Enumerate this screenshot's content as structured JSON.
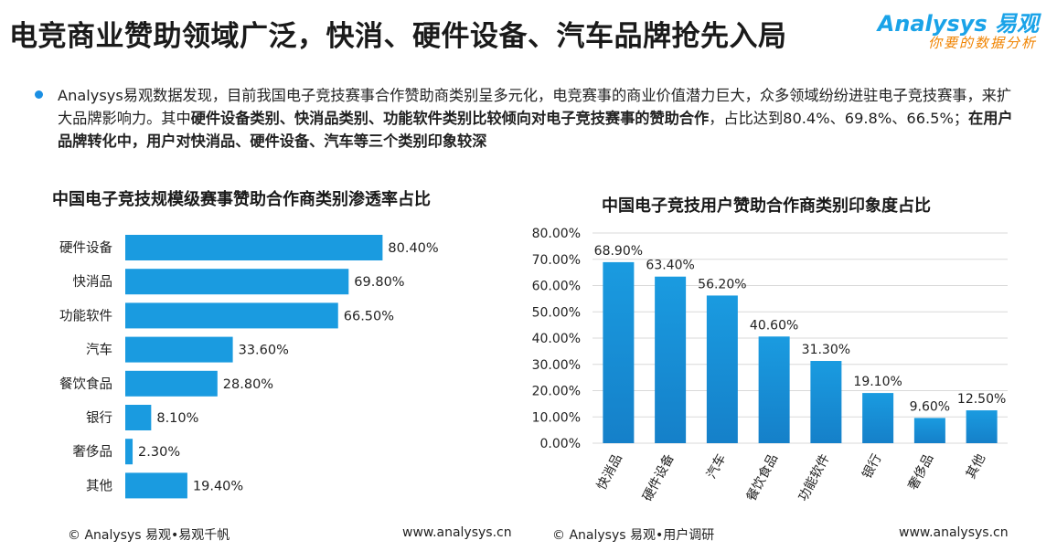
{
  "header": {
    "title": "电竞商业赞助领域广泛，快消、硬件设备、汽车品牌抢先入局",
    "logo_brand": "Analysys 易观",
    "logo_tagline": "你要的数据分析"
  },
  "summary": {
    "part1": "Analysys易观数据发现，目前我国电子竞技赛事合作赞助商类别呈多元化，电竞赛事的商业价值潜力巨大，众多领域纷纷进驻电子竞技赛事，来扩大品牌影响力。其中",
    "bold1": "硬件设备类别、快消品类别、功能软件类别比较倾向对电子竞技赛事的赞助合作",
    "part2": "，占比达到80.4%、69.8%、66.5%；",
    "bold2": "在用户品牌转化中，用户对快消品、硬件设备、汽车等三个类别印象较深"
  },
  "left_panel": {
    "footer_source": "© Analysys 易观•易观千帆",
    "footer_url": "www.analysys.cn"
  },
  "right_panel": {
    "footer_source": "© Analysys 易观•用户调研",
    "footer_url": "www.analysys.cn"
  },
  "colors": {
    "bar": "#1a9be0",
    "bar_dark": "#1580c9",
    "grid": "#d9d9d9"
  },
  "chart_data": [
    {
      "type": "bar",
      "orientation": "horizontal",
      "title": "中国电子竞技规模级赛事赞助合作商类别渗透率占比",
      "categories": [
        "硬件设备",
        "快消品",
        "功能软件",
        "汽车",
        "餐饮食品",
        "银行",
        "奢侈品",
        "其他"
      ],
      "values": [
        80.4,
        69.8,
        66.5,
        33.6,
        28.8,
        8.1,
        2.3,
        19.4
      ],
      "value_labels": [
        "80.40%",
        "69.80%",
        "66.50%",
        "33.60%",
        "28.80%",
        "8.10%",
        "2.30%",
        "19.40%"
      ],
      "xlim": [
        0,
        100
      ],
      "grid": false,
      "legend": "none"
    },
    {
      "type": "bar",
      "orientation": "vertical",
      "title": "中国电子竞技用户赞助合作商类别印象度占比",
      "categories": [
        "快消品",
        "硬件设备",
        "汽车",
        "餐饮食品",
        "功能软件",
        "银行",
        "奢侈品",
        "其他"
      ],
      "values": [
        68.9,
        63.4,
        56.2,
        40.6,
        31.3,
        19.1,
        9.6,
        12.5
      ],
      "value_labels": [
        "68.90%",
        "63.40%",
        "56.20%",
        "40.60%",
        "31.30%",
        "19.10%",
        "9.60%",
        "12.50%"
      ],
      "yticks": [
        "0.00%",
        "10.00%",
        "20.00%",
        "30.00%",
        "40.00%",
        "50.00%",
        "60.00%",
        "70.00%",
        "80.00%"
      ],
      "ylim": [
        0,
        80
      ],
      "grid": true,
      "legend": "none"
    }
  ]
}
